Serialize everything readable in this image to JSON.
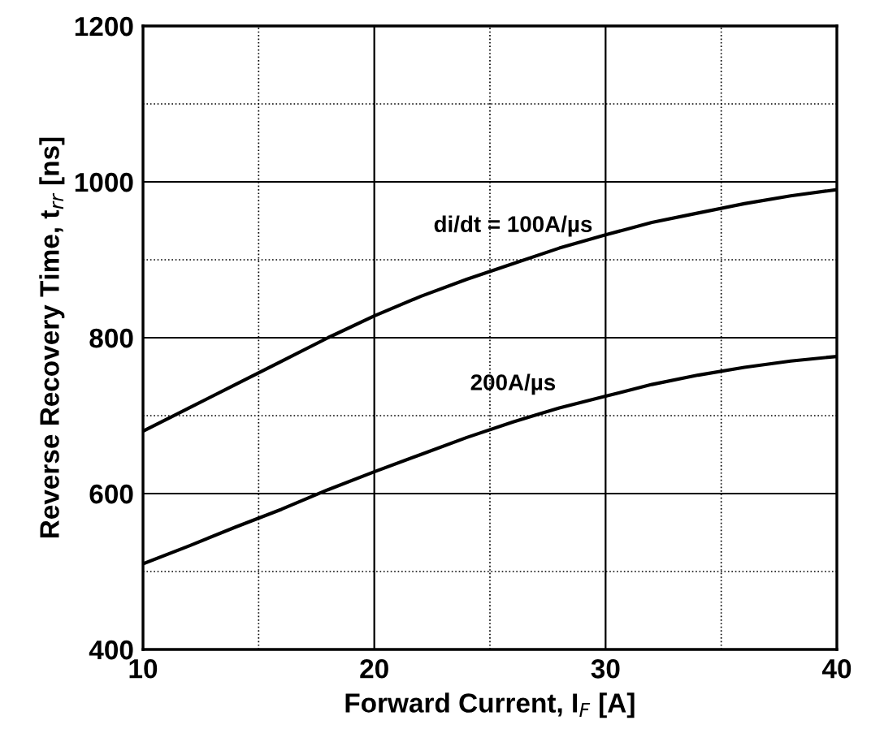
{
  "chart_data": {
    "type": "line",
    "xlabel": "Forward Current, I$_{F}$ [A]",
    "ylabel": "Reverse Recovery Time, t$_{rr}$ [ns]",
    "xlim": [
      10,
      40
    ],
    "xticks": [
      10,
      {
        "value": 15,
        "label": null
      },
      20,
      {
        "value": 25,
        "label": null
      },
      30,
      {
        "value": 35,
        "label": null
      },
      40
    ],
    "ylim": [
      400,
      1200
    ],
    "yticks": [
      400,
      {
        "value": 500,
        "label": null
      },
      600,
      {
        "value": 700,
        "label": null
      },
      800,
      {
        "value": 900,
        "label": null
      },
      1000,
      {
        "value": 1100,
        "label": null
      },
      1200
    ],
    "grid": true,
    "legend": false,
    "series": [
      {
        "name": "di/dt = 100A/µs",
        "color": "#000000",
        "x": [
          10,
          12,
          14,
          16,
          18,
          20,
          22,
          24,
          26,
          28,
          30,
          32,
          34,
          36,
          38,
          40
        ],
        "values": [
          680,
          710,
          740,
          770,
          800,
          828,
          853,
          875,
          895,
          915,
          932,
          948,
          960,
          972,
          982,
          990
        ]
      },
      {
        "name": "200A/µs",
        "color": "#000000",
        "x": [
          10,
          12,
          14,
          16,
          18,
          20,
          22,
          24,
          26,
          28,
          30,
          32,
          34,
          36,
          38,
          40
        ],
        "values": [
          510,
          533,
          557,
          580,
          605,
          628,
          650,
          672,
          692,
          710,
          725,
          740,
          752,
          762,
          770,
          776
        ]
      }
    ]
  }
}
